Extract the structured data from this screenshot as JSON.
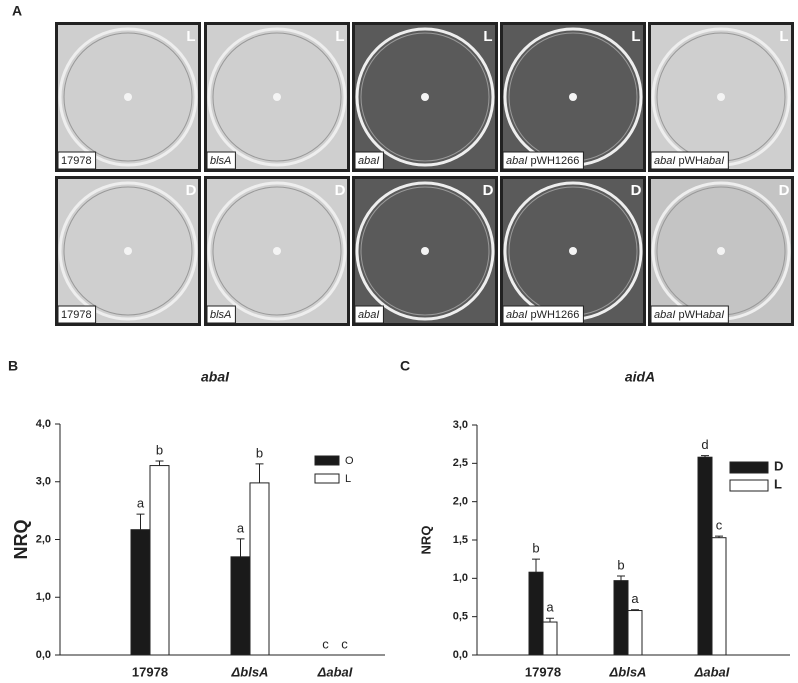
{
  "panel_a": {
    "label": "A",
    "rows": [
      [
        {
          "corner": "L",
          "background": "#cfcfcf",
          "caption": [
            {
              "text": "17978",
              "italic": false
            }
          ]
        },
        {
          "corner": "L",
          "background": "#cfcfcf",
          "caption": [
            {
              "text": "blsA",
              "italic": true
            }
          ]
        },
        {
          "corner": "L",
          "background": "#5a5a5a",
          "caption": [
            {
              "text": "abaI",
              "italic": true
            }
          ]
        },
        {
          "corner": "L",
          "background": "#5a5a5a",
          "caption": [
            {
              "text": "abaI",
              "italic": true
            },
            {
              "text": " pWH1266",
              "italic": false
            }
          ]
        },
        {
          "corner": "L",
          "background": "#cfcfcf",
          "caption": [
            {
              "text": "abaI",
              "italic": true
            },
            {
              "text": " pWH",
              "italic": false
            },
            {
              "text": "abaI",
              "italic": true
            }
          ]
        }
      ],
      [
        {
          "corner": "D",
          "background": "#cfcfcf",
          "caption": [
            {
              "text": "17978",
              "italic": false
            }
          ]
        },
        {
          "corner": "D",
          "background": "#cfcfcf",
          "caption": [
            {
              "text": "blsA",
              "italic": true
            }
          ]
        },
        {
          "corner": "D",
          "background": "#5a5a5a",
          "caption": [
            {
              "text": "abaI",
              "italic": true
            }
          ]
        },
        {
          "corner": "D",
          "background": "#5a5a5a",
          "caption": [
            {
              "text": "abaI",
              "italic": true
            },
            {
              "text": " pWH1266",
              "italic": false
            }
          ]
        },
        {
          "corner": "D",
          "background": "#c4c4c4",
          "caption": [
            {
              "text": "abaI",
              "italic": true
            },
            {
              "text": " pWH",
              "italic": false
            },
            {
              "text": "abaI",
              "italic": true
            }
          ]
        }
      ]
    ]
  },
  "chart_data": [
    {
      "type": "bar",
      "panel": "B",
      "title": "abaI",
      "y_label": "NRQ",
      "categories": [
        "17978",
        "ΔblsA",
        "ΔabaI"
      ],
      "category_italic": [
        false,
        true,
        true
      ],
      "ylim": [
        0,
        4
      ],
      "yticks": [
        {
          "value": 0,
          "label": "0,0"
        },
        {
          "value": 1,
          "label": "1,0"
        },
        {
          "value": 2,
          "label": "2,0"
        },
        {
          "value": 3,
          "label": "3,0"
        },
        {
          "value": 4,
          "label": "4,0"
        }
      ],
      "legend": "upper right",
      "series": [
        {
          "name": "O",
          "color": "#1a1a1a",
          "values": [
            2.17,
            1.7,
            0
          ],
          "errors": [
            0.27,
            0.31,
            0
          ],
          "letters": [
            "a",
            "a",
            "c"
          ]
        },
        {
          "name": "L",
          "color": "#ffffff",
          "values": [
            3.28,
            2.98,
            0
          ],
          "errors": [
            0.08,
            0.33,
            0
          ],
          "letters": [
            "b",
            "b",
            "c"
          ]
        }
      ]
    },
    {
      "type": "bar",
      "panel": "C",
      "title": "aidA",
      "y_label": "NRQ",
      "categories": [
        "17978",
        "ΔblsA",
        "ΔabaI"
      ],
      "category_italic": [
        false,
        true,
        true
      ],
      "ylim": [
        0,
        3
      ],
      "yticks": [
        {
          "value": 0,
          "label": "0,0"
        },
        {
          "value": 0.5,
          "label": "0,5"
        },
        {
          "value": 1,
          "label": "1,0"
        },
        {
          "value": 1.5,
          "label": "1,5"
        },
        {
          "value": 2,
          "label": "2,0"
        },
        {
          "value": 2.5,
          "label": "2,5"
        },
        {
          "value": 3,
          "label": "3,0"
        }
      ],
      "legend": "upper right",
      "series": [
        {
          "name": "D",
          "color": "#1a1a1a",
          "values": [
            1.08,
            0.97,
            2.58
          ],
          "errors": [
            0.17,
            0.06,
            0.02
          ],
          "letters": [
            "b",
            "b",
            "d"
          ]
        },
        {
          "name": "L",
          "color": "#ffffff",
          "values": [
            0.43,
            0.58,
            1.53
          ],
          "errors": [
            0.05,
            0.01,
            0.02
          ],
          "letters": [
            "a",
            "a",
            "c"
          ]
        }
      ]
    }
  ]
}
